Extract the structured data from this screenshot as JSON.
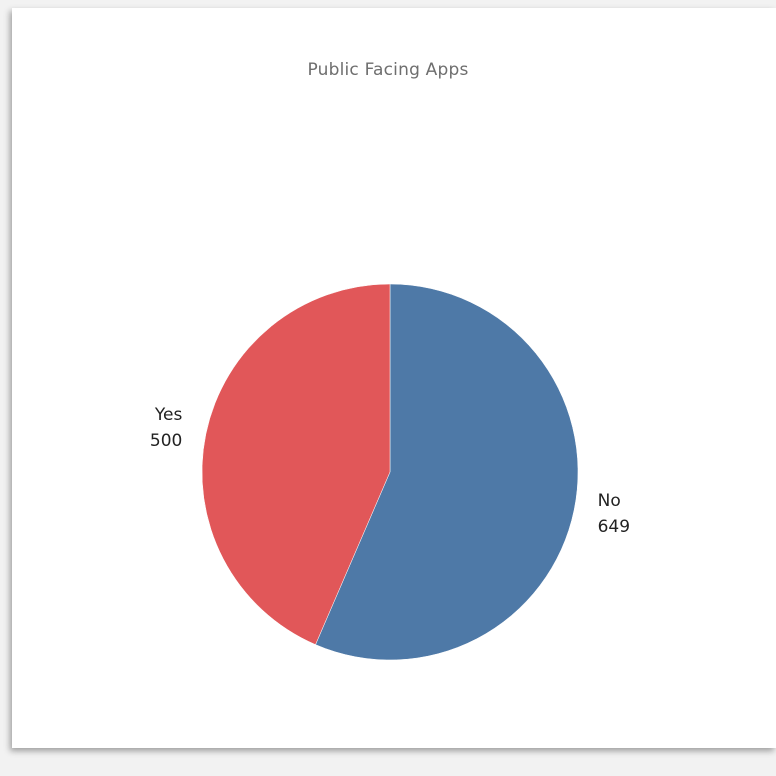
{
  "chart_data": {
    "type": "pie",
    "title": "Public Facing Apps",
    "slices": [
      {
        "label": "No",
        "value": 649,
        "color": "#4e79a7"
      },
      {
        "label": "Yes",
        "value": 500,
        "color": "#e15759"
      }
    ]
  }
}
